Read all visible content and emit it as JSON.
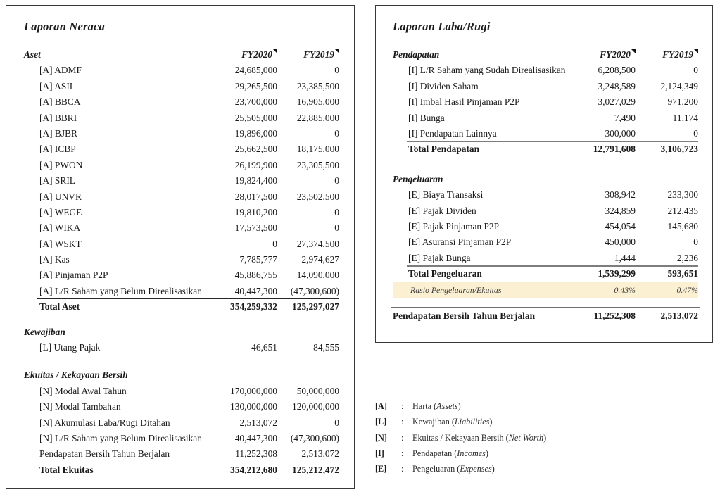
{
  "meta": {
    "colors": {
      "background": "#ffffff",
      "text": "#1b1b1b",
      "panel_border": "#383838",
      "ratio_highlight_bg": "#fcf0d3",
      "total_rule_dark": "#262626",
      "total_rule_gray": "#7d7d7d",
      "comment_mark": "#121212"
    }
  },
  "neraca": {
    "title": "Laporan Neraca",
    "blocks": [
      {
        "kind": "header",
        "label": "Aset",
        "fy2020": "FY2020",
        "fy2019": "FY2019"
      },
      {
        "kind": "row",
        "label": "[A] ADMF",
        "fy2020": "24,685,000",
        "fy2019": "0"
      },
      {
        "kind": "row",
        "label": "[A] ASII",
        "fy2020": "29,265,500",
        "fy2019": "23,385,500"
      },
      {
        "kind": "row",
        "label": "[A] BBCA",
        "fy2020": "23,700,000",
        "fy2019": "16,905,000"
      },
      {
        "kind": "row",
        "label": "[A] BBRI",
        "fy2020": "25,505,000",
        "fy2019": "22,885,000"
      },
      {
        "kind": "row",
        "label": "[A] BJBR",
        "fy2020": "19,896,000",
        "fy2019": "0"
      },
      {
        "kind": "row",
        "label": "[A] ICBP",
        "fy2020": "25,662,500",
        "fy2019": "18,175,000"
      },
      {
        "kind": "row",
        "label": "[A] PWON",
        "fy2020": "26,199,900",
        "fy2019": "23,305,500"
      },
      {
        "kind": "row",
        "label": "[A] SRIL",
        "fy2020": "19,824,400",
        "fy2019": "0"
      },
      {
        "kind": "row",
        "label": "[A] UNVR",
        "fy2020": "28,017,500",
        "fy2019": "23,502,500"
      },
      {
        "kind": "row",
        "label": "[A] WEGE",
        "fy2020": "19,810,200",
        "fy2019": "0"
      },
      {
        "kind": "row",
        "label": "[A] WIKA",
        "fy2020": "17,573,500",
        "fy2019": "0"
      },
      {
        "kind": "row",
        "label": "[A] WSKT",
        "fy2020": "0",
        "fy2019": "27,374,500"
      },
      {
        "kind": "row",
        "label": "[A] Kas",
        "fy2020": "7,785,777",
        "fy2019": "2,974,627"
      },
      {
        "kind": "row",
        "label": "[A] Pinjaman P2P",
        "fy2020": "45,886,755",
        "fy2019": "14,090,000"
      },
      {
        "kind": "row",
        "label": "[A] L/R Saham yang Belum Direalisasikan",
        "fy2020": "40,447,300",
        "fy2019": "(47,300,600)"
      },
      {
        "kind": "row",
        "style": "total",
        "label": "Total Aset",
        "fy2020": "354,259,332",
        "fy2019": "125,297,027"
      },
      {
        "kind": "header",
        "style": "gap-a",
        "label": "Kewajiban"
      },
      {
        "kind": "row",
        "label": "[L] Utang Pajak",
        "fy2020": "46,651",
        "fy2019": "84,555"
      },
      {
        "kind": "header",
        "style": "gap-b",
        "label": "Ekuitas / Kekayaan Bersih"
      },
      {
        "kind": "row",
        "label": "[N] Modal Awal Tahun",
        "fy2020": "170,000,000",
        "fy2019": "50,000,000"
      },
      {
        "kind": "row",
        "label": "[N] Modal Tambahan",
        "fy2020": "130,000,000",
        "fy2019": "120,000,000"
      },
      {
        "kind": "row",
        "label": "[N] Akumulasi Laba/Rugi Ditahan",
        "fy2020": "2,513,072",
        "fy2019": "0"
      },
      {
        "kind": "row",
        "label": "[N] L/R Saham yang Belum Direalisasikan",
        "fy2020": "40,447,300",
        "fy2019": "(47,300,600)"
      },
      {
        "kind": "row",
        "label": "Pendapatan Bersih Tahun Berjalan",
        "fy2020": "11,252,308",
        "fy2019": "2,513,072"
      },
      {
        "kind": "row",
        "style": "total",
        "label": "Total Ekuitas",
        "fy2020": "354,212,680",
        "fy2019": "125,212,472"
      }
    ]
  },
  "labarugi": {
    "title": "Laporan Laba/Rugi",
    "blocks": [
      {
        "kind": "header",
        "label": "Pendapatan",
        "fy2020": "FY2020",
        "fy2019": "FY2019"
      },
      {
        "kind": "row",
        "label": "[I] L/R Saham yang Sudah Direalisasikan",
        "fy2020": "6,208,500",
        "fy2019": "0"
      },
      {
        "kind": "row",
        "label": "[I] Dividen Saham",
        "fy2020": "3,248,589",
        "fy2019": "2,124,349"
      },
      {
        "kind": "row",
        "label": "[I] Imbal Hasil Pinjaman P2P",
        "fy2020": "3,027,029",
        "fy2019": "971,200"
      },
      {
        "kind": "row",
        "label": "[I] Bunga",
        "fy2020": "7,490",
        "fy2019": "11,174"
      },
      {
        "kind": "row",
        "label": "[I] Pendapatan Lainnya",
        "fy2020": "300,000",
        "fy2019": "0"
      },
      {
        "kind": "row",
        "style": "total",
        "label": "Total Pendapatan",
        "fy2020": "12,791,608",
        "fy2019": "3,106,723"
      },
      {
        "kind": "header",
        "style": "gap-c",
        "label": "Pengeluaran"
      },
      {
        "kind": "row",
        "label": "[E] Biaya Transaksi",
        "fy2020": "308,942",
        "fy2019": "233,300"
      },
      {
        "kind": "row",
        "label": "[E] Pajak Dividen",
        "fy2020": "324,859",
        "fy2019": "212,435"
      },
      {
        "kind": "row",
        "label": "[E] Pajak Pinjaman P2P",
        "fy2020": "454,054",
        "fy2019": "145,680"
      },
      {
        "kind": "row",
        "label": "[E] Asuransi Pinjaman P2P",
        "fy2020": "450,000",
        "fy2019": "0"
      },
      {
        "kind": "row",
        "label": "[E] Pajak Bunga",
        "fy2020": "1,444",
        "fy2019": "2,236"
      },
      {
        "kind": "row",
        "style": "total",
        "label": "Total Pengeluaran",
        "fy2020": "1,539,299",
        "fy2019": "593,651"
      },
      {
        "kind": "row",
        "style": "ratio",
        "label": "Rasio Pengeluaran/Ekuitas",
        "fy2020": "0.43%",
        "fy2019": "0.47%"
      },
      {
        "kind": "row",
        "style": "grand",
        "label": "Pendapatan Bersih Tahun Berjalan",
        "fy2020": "11,252,308",
        "fy2019": "2,513,072"
      }
    ]
  },
  "legend": {
    "items": [
      {
        "code": "[A]",
        "sep": ":",
        "prefix": "Harta (",
        "italic": "Assets",
        "suffix": ")"
      },
      {
        "code": "[L]",
        "sep": ":",
        "prefix": "Kewajiban (",
        "italic": "Liabilities",
        "suffix": ")"
      },
      {
        "code": "[N]",
        "sep": ":",
        "prefix": "Ekuitas / Kekayaan Bersih (",
        "italic": "Net Worth",
        "suffix": ")"
      },
      {
        "code": "[I]",
        "sep": ":",
        "prefix": "Pendapatan (",
        "italic": "Incomes",
        "suffix": ")"
      },
      {
        "code": "[E]",
        "sep": ":",
        "prefix": "Pengeluaran (",
        "italic": "Expenses",
        "suffix": ")"
      }
    ]
  }
}
